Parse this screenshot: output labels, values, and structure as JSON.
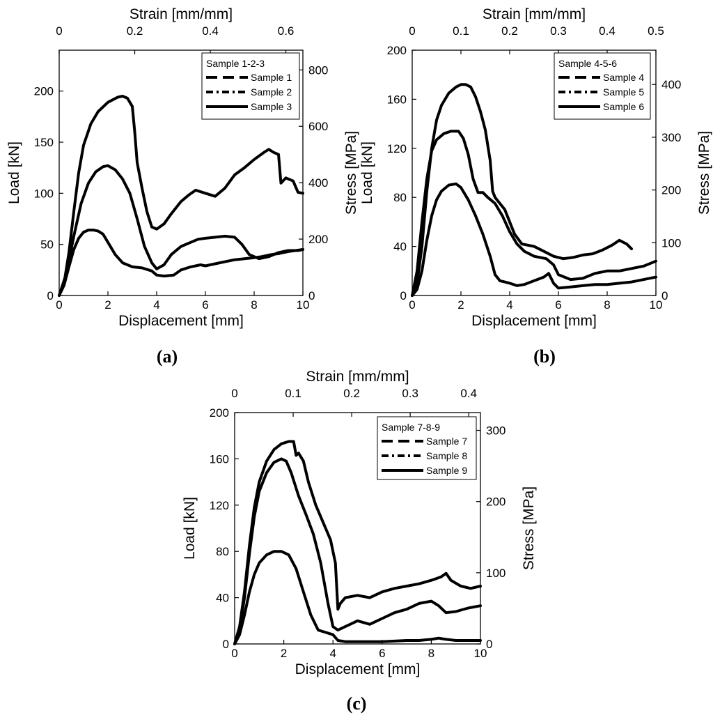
{
  "chart_data": [
    {
      "type": "line",
      "panel_label": "(a)",
      "legend_title": "Sample 1-2-3",
      "xlabel": "Displacement [mm]",
      "ylabel": "Load [kN]",
      "x2label": "Strain [mm/mm]",
      "y2label": "Stress [MPa]",
      "xlim": [
        0,
        10
      ],
      "ylim": [
        0,
        240
      ],
      "x2lim": [
        0,
        0.645
      ],
      "y2lim": [
        0,
        870
      ],
      "xticks": [
        0,
        2,
        4,
        6,
        8,
        10
      ],
      "yticks": [
        0,
        50,
        100,
        150,
        200
      ],
      "x2ticks": [
        0,
        0.2,
        0.4,
        0.6
      ],
      "x2ticklabels": [
        "0",
        "0.2",
        "0.4",
        "0.6"
      ],
      "y2ticks": [
        0,
        200,
        400,
        600,
        800
      ],
      "series": [
        {
          "name": "Sample 1",
          "legend_style": "long-dash",
          "x": [
            0,
            0.2,
            0.4,
            0.6,
            0.8,
            1.0,
            1.2,
            1.4,
            1.6,
            1.8,
            2.0,
            2.3,
            2.6,
            3.0,
            3.4,
            3.8,
            4.0,
            4.3,
            4.7,
            5.0,
            5.4,
            5.8,
            6.0,
            6.4,
            6.8,
            7.2,
            7.6,
            8.0,
            8.3,
            8.7,
            9.0,
            9.4,
            9.7,
            10.0
          ],
          "y": [
            0,
            10,
            28,
            45,
            56,
            62,
            64,
            64,
            63,
            60,
            52,
            40,
            32,
            28,
            27,
            24,
            20,
            19,
            20,
            25,
            28,
            30,
            29,
            31,
            33,
            35,
            36,
            37,
            38,
            40,
            41,
            43,
            44,
            45
          ]
        },
        {
          "name": "Sample 2",
          "legend_style": "dash-dot",
          "x": [
            0,
            0.3,
            0.6,
            0.9,
            1.2,
            1.5,
            1.8,
            2.0,
            2.3,
            2.6,
            2.9,
            3.2,
            3.5,
            3.8,
            4.0,
            4.3,
            4.6,
            5.0,
            5.4,
            5.7,
            6.0,
            6.4,
            6.8,
            7.2,
            7.5,
            7.8,
            8.2,
            8.6,
            9.0,
            9.4,
            9.8,
            10.0
          ],
          "y": [
            0,
            22,
            58,
            90,
            110,
            121,
            126,
            127,
            123,
            114,
            100,
            75,
            48,
            32,
            26,
            30,
            40,
            48,
            52,
            55,
            56,
            57,
            58,
            57,
            50,
            40,
            36,
            38,
            42,
            44,
            44,
            45
          ]
        },
        {
          "name": "Sample 3",
          "legend_style": "solid",
          "x": [
            0,
            0.2,
            0.4,
            0.6,
            0.8,
            1.0,
            1.3,
            1.6,
            2.0,
            2.4,
            2.6,
            2.8,
            3.0,
            3.1,
            3.2,
            3.4,
            3.6,
            3.8,
            4.0,
            4.3,
            4.6,
            5.0,
            5.3,
            5.6,
            6.0,
            6.4,
            6.8,
            7.2,
            7.6,
            8.0,
            8.4,
            8.6,
            8.8,
            9.0,
            9.1,
            9.3,
            9.6,
            9.8,
            10.0
          ],
          "y": [
            0,
            12,
            42,
            82,
            120,
            147,
            168,
            180,
            189,
            194,
            195,
            193,
            185,
            160,
            130,
            105,
            82,
            67,
            65,
            70,
            80,
            92,
            98,
            103,
            100,
            97,
            105,
            118,
            125,
            133,
            140,
            143,
            140,
            138,
            110,
            115,
            112,
            101,
            100
          ]
        }
      ]
    },
    {
      "type": "line",
      "panel_label": "(b)",
      "legend_title": "Sample 4-5-6",
      "xlabel": "Displacement [mm]",
      "ylabel": "Load [kN]",
      "x2label": "Strain [mm/mm]",
      "y2label": "Stress [MPa]",
      "xlim": [
        0,
        10
      ],
      "ylim": [
        0,
        200
      ],
      "x2lim": [
        0,
        0.5
      ],
      "y2lim": [
        0,
        465
      ],
      "xticks": [
        0,
        2,
        4,
        6,
        8,
        10
      ],
      "yticks": [
        0,
        40,
        80,
        120,
        160,
        200
      ],
      "x2ticks": [
        0,
        0.1,
        0.2,
        0.3,
        0.4,
        0.5
      ],
      "x2ticklabels": [
        "0",
        "0.1",
        "0.2",
        "0.3",
        "0.4",
        "0.5"
      ],
      "y2ticks": [
        0,
        100,
        200,
        300,
        400
      ],
      "series": [
        {
          "name": "Sample 4",
          "legend_style": "long-dash",
          "x": [
            0,
            0.2,
            0.4,
            0.6,
            0.8,
            1.0,
            1.2,
            1.5,
            1.8,
            2.0,
            2.2,
            2.4,
            2.6,
            2.8,
            3.0,
            3.2,
            3.3,
            3.4,
            3.6,
            3.8,
            4.0,
            4.2,
            4.5,
            5.0,
            5.4,
            5.8,
            6.2,
            6.6,
            7.0,
            7.4,
            7.8,
            8.2,
            8.5,
            8.8,
            9.0
          ],
          "y": [
            0,
            10,
            40,
            85,
            120,
            143,
            155,
            165,
            170,
            172,
            172,
            170,
            162,
            150,
            135,
            110,
            85,
            80,
            75,
            70,
            60,
            50,
            42,
            40,
            36,
            32,
            30,
            31,
            33,
            34,
            37,
            41,
            45,
            42,
            38
          ]
        },
        {
          "name": "Sample 5",
          "legend_style": "dash-dot",
          "x": [
            0,
            0.2,
            0.4,
            0.6,
            0.8,
            1.0,
            1.3,
            1.6,
            1.9,
            2.1,
            2.3,
            2.5,
            2.7,
            2.9,
            3.1,
            3.4,
            3.7,
            4.0,
            4.3,
            4.6,
            5.0,
            5.5,
            5.8,
            6.0,
            6.5,
            7.0,
            7.5,
            8.0,
            8.5,
            9.0,
            9.5,
            10.0
          ],
          "y": [
            0,
            20,
            60,
            95,
            118,
            127,
            132,
            134,
            134,
            128,
            115,
            95,
            84,
            84,
            80,
            75,
            65,
            52,
            42,
            36,
            32,
            30,
            25,
            17,
            13,
            14,
            18,
            20,
            20,
            22,
            24,
            28
          ]
        },
        {
          "name": "Sample 6",
          "legend_style": "solid",
          "x": [
            0,
            0.2,
            0.4,
            0.6,
            0.8,
            1.0,
            1.2,
            1.5,
            1.8,
            2.0,
            2.3,
            2.6,
            2.9,
            3.2,
            3.4,
            3.6,
            3.8,
            4.0,
            4.3,
            4.6,
            5.0,
            5.4,
            5.6,
            5.8,
            6.0,
            6.5,
            7.0,
            7.5,
            8.0,
            8.5,
            9.0,
            9.5,
            10.0
          ],
          "y": [
            0,
            5,
            20,
            45,
            65,
            78,
            85,
            90,
            91,
            88,
            78,
            65,
            50,
            32,
            17,
            12,
            11,
            10,
            8,
            9,
            12,
            15,
            18,
            10,
            6,
            7,
            8,
            9,
            9,
            10,
            11,
            13,
            15
          ]
        }
      ]
    },
    {
      "type": "line",
      "panel_label": "(c)",
      "legend_title": "Sample 7-8-9",
      "xlabel": "Displacement [mm]",
      "ylabel": "Load [kN]",
      "x2label": "Strain [mm/mm]",
      "y2label": "Stress [MPa]",
      "xlim": [
        0,
        10
      ],
      "ylim": [
        0,
        200
      ],
      "x2lim": [
        0,
        0.42
      ],
      "y2lim": [
        0,
        325
      ],
      "xticks": [
        0,
        2,
        4,
        6,
        8,
        10
      ],
      "yticks": [
        0,
        40,
        80,
        120,
        160,
        200
      ],
      "x2ticks": [
        0,
        0.1,
        0.2,
        0.3,
        0.4
      ],
      "x2ticklabels": [
        "0",
        "0.1",
        "0.2",
        "0.3",
        "0.4"
      ],
      "y2ticks": [
        0,
        100,
        200,
        300
      ],
      "series": [
        {
          "name": "Sample 7",
          "legend_style": "long-dash",
          "x": [
            0,
            0.2,
            0.4,
            0.6,
            0.8,
            1.0,
            1.3,
            1.6,
            1.9,
            2.2,
            2.4,
            2.5,
            2.6,
            2.8,
            3.0,
            3.3,
            3.6,
            3.9,
            4.1,
            4.2,
            4.3,
            4.5,
            5.0,
            5.5,
            6.0,
            6.5,
            7.0,
            7.5,
            8.0,
            8.4,
            8.6,
            8.8,
            9.2,
            9.6,
            10.0
          ],
          "y": [
            0,
            15,
            45,
            85,
            118,
            140,
            158,
            168,
            173,
            175,
            175,
            163,
            165,
            158,
            140,
            120,
            105,
            90,
            70,
            30,
            35,
            40,
            42,
            40,
            45,
            48,
            50,
            52,
            55,
            58,
            61,
            55,
            50,
            48,
            50
          ]
        },
        {
          "name": "Sample 8",
          "legend_style": "dash-dot",
          "x": [
            0,
            0.2,
            0.4,
            0.6,
            0.8,
            1.0,
            1.3,
            1.6,
            1.9,
            2.1,
            2.3,
            2.6,
            2.9,
            3.2,
            3.5,
            3.8,
            4.0,
            4.2,
            4.5,
            5.0,
            5.5,
            6.0,
            6.5,
            7.0,
            7.5,
            8.0,
            8.3,
            8.6,
            9.0,
            9.5,
            10.0
          ],
          "y": [
            0,
            12,
            40,
            78,
            110,
            132,
            148,
            157,
            160,
            158,
            148,
            128,
            112,
            95,
            70,
            35,
            15,
            12,
            15,
            20,
            17,
            22,
            27,
            30,
            35,
            37,
            33,
            27,
            28,
            31,
            33
          ]
        },
        {
          "name": "Sample 9",
          "legend_style": "solid",
          "x": [
            0,
            0.2,
            0.4,
            0.6,
            0.8,
            1.0,
            1.3,
            1.6,
            1.9,
            2.2,
            2.5,
            2.8,
            3.1,
            3.4,
            3.7,
            4.0,
            4.2,
            4.5,
            5.0,
            6.0,
            7.0,
            7.5,
            8.0,
            8.3,
            8.6,
            9.0,
            9.5,
            10.0
          ],
          "y": [
            0,
            8,
            25,
            45,
            60,
            70,
            77,
            80,
            80,
            77,
            65,
            45,
            25,
            12,
            10,
            8,
            3,
            2,
            2,
            2,
            3,
            3,
            4,
            5,
            4,
            3,
            3,
            3
          ]
        }
      ]
    }
  ]
}
